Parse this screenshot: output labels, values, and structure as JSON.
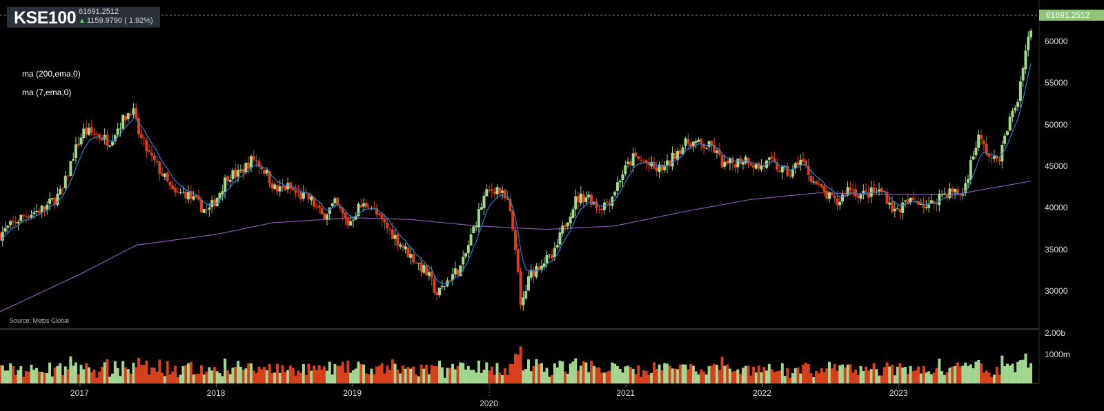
{
  "header": {
    "ticker": "KSE100",
    "last_value": "61691.2512",
    "change": "1159.9790 ( 1.92%)",
    "change_direction": "up"
  },
  "legend": {
    "ma_long": "ma (200,ema,0)",
    "ma_short": "ma (7,ema,0)"
  },
  "source": "Source: Mettis Global",
  "price_badge": "61691.2512",
  "colors": {
    "background": "#000000",
    "up": "#a3d68e",
    "down": "#d6401c",
    "ma_short": "#2e7fd0",
    "ma_long": "#8a56b0",
    "badge": "#8dc47a",
    "grid": "#2a2a2a"
  },
  "chart_data": {
    "type": "candlestick",
    "y_ticks": [
      "60000",
      "55000",
      "50000",
      "45000",
      "40000",
      "35000",
      "30000"
    ],
    "y_range": [
      26000,
      63500
    ],
    "volume_ticks": [
      "2.00b",
      "1000m"
    ],
    "x_ticks": [
      "2017",
      "2018",
      "2019",
      "2020",
      "2021",
      "2022",
      "2023"
    ],
    "x_range": [
      "2016-06-01",
      "2023-12-31"
    ],
    "last_close": 61691.2512,
    "close_path": [
      [
        "2016-06-01",
        36800
      ],
      [
        "2016-08-01",
        39000
      ],
      [
        "2016-10-01",
        40000
      ],
      [
        "2016-11-15",
        42000
      ],
      [
        "2016-12-15",
        46500
      ],
      [
        "2017-01-10",
        49200
      ],
      [
        "2017-02-15",
        48800
      ],
      [
        "2017-03-20",
        48000
      ],
      [
        "2017-04-20",
        50200
      ],
      [
        "2017-05-20",
        52000
      ],
      [
        "2017-06-10",
        48500
      ],
      [
        "2017-07-10",
        46000
      ],
      [
        "2017-08-10",
        44000
      ],
      [
        "2017-09-10",
        41500
      ],
      [
        "2017-10-10",
        41800
      ],
      [
        "2017-11-10",
        40500
      ],
      [
        "2017-12-10",
        39500
      ],
      [
        "2018-01-05",
        41500
      ],
      [
        "2018-02-01",
        44000
      ],
      [
        "2018-03-01",
        44000
      ],
      [
        "2018-04-10",
        46000
      ],
      [
        "2018-05-10",
        44500
      ],
      [
        "2018-06-10",
        42000
      ],
      [
        "2018-07-10",
        42500
      ],
      [
        "2018-08-10",
        41500
      ],
      [
        "2018-09-10",
        41000
      ],
      [
        "2018-10-10",
        39000
      ],
      [
        "2018-11-15",
        40500
      ],
      [
        "2018-12-20",
        38000
      ],
      [
        "2019-01-15",
        40000
      ],
      [
        "2019-02-15",
        40500
      ],
      [
        "2019-03-15",
        38500
      ],
      [
        "2019-04-15",
        37000
      ],
      [
        "2019-05-20",
        35000
      ],
      [
        "2019-06-20",
        33500
      ],
      [
        "2019-07-20",
        32000
      ],
      [
        "2019-08-15",
        29500
      ],
      [
        "2019-09-15",
        31500
      ],
      [
        "2019-10-20",
        33000
      ],
      [
        "2019-11-20",
        37500
      ],
      [
        "2019-12-20",
        41500
      ],
      [
        "2020-01-20",
        42500
      ],
      [
        "2020-02-20",
        40500
      ],
      [
        "2020-03-10",
        36000
      ],
      [
        "2020-03-25",
        28000
      ],
      [
        "2020-04-20",
        32000
      ],
      [
        "2020-05-20",
        33500
      ],
      [
        "2020-06-20",
        34000
      ],
      [
        "2020-07-20",
        38000
      ],
      [
        "2020-08-20",
        41000
      ],
      [
        "2020-09-20",
        41500
      ],
      [
        "2020-10-20",
        40000
      ],
      [
        "2020-11-20",
        41000
      ],
      [
        "2020-12-20",
        44000
      ],
      [
        "2021-01-20",
        46000
      ],
      [
        "2021-02-20",
        45500
      ],
      [
        "2021-03-20",
        44500
      ],
      [
        "2021-04-20",
        45000
      ],
      [
        "2021-05-20",
        47000
      ],
      [
        "2021-06-20",
        48000
      ],
      [
        "2021-07-20",
        47500
      ],
      [
        "2021-08-20",
        47300
      ],
      [
        "2021-09-20",
        45000
      ],
      [
        "2021-10-20",
        45500
      ],
      [
        "2021-11-20",
        46000
      ],
      [
        "2021-12-20",
        44800
      ],
      [
        "2022-01-20",
        45500
      ],
      [
        "2022-02-20",
        44500
      ],
      [
        "2022-03-20",
        44000
      ],
      [
        "2022-04-10",
        46000
      ],
      [
        "2022-05-20",
        43000
      ],
      [
        "2022-06-20",
        41500
      ],
      [
        "2022-07-20",
        40500
      ],
      [
        "2022-08-20",
        42500
      ],
      [
        "2022-09-20",
        41500
      ],
      [
        "2022-10-20",
        41800
      ],
      [
        "2022-11-20",
        42000
      ],
      [
        "2022-12-20",
        39500
      ],
      [
        "2023-01-20",
        40500
      ],
      [
        "2023-02-20",
        41000
      ],
      [
        "2023-03-20",
        40000
      ],
      [
        "2023-04-20",
        41500
      ],
      [
        "2023-05-20",
        42000
      ],
      [
        "2023-06-20",
        41500
      ],
      [
        "2023-07-10",
        45000
      ],
      [
        "2023-08-01",
        48500
      ],
      [
        "2023-08-20",
        47000
      ],
      [
        "2023-09-10",
        45500
      ],
      [
        "2023-10-01",
        46500
      ],
      [
        "2023-10-20",
        50000
      ],
      [
        "2023-11-15",
        53000
      ],
      [
        "2023-12-01",
        58000
      ],
      [
        "2023-12-20",
        61691
      ]
    ],
    "ma_long_path": [
      [
        "2016-06-01",
        27500
      ],
      [
        "2017-01-01",
        32000
      ],
      [
        "2017-06-01",
        35500
      ],
      [
        "2018-01-01",
        36800
      ],
      [
        "2018-06-01",
        38200
      ],
      [
        "2019-01-01",
        38800
      ],
      [
        "2019-06-01",
        38600
      ],
      [
        "2019-12-01",
        37800
      ],
      [
        "2020-06-01",
        37400
      ],
      [
        "2020-12-01",
        37800
      ],
      [
        "2021-06-01",
        39500
      ],
      [
        "2021-12-01",
        41000
      ],
      [
        "2022-06-01",
        41800
      ],
      [
        "2022-12-01",
        41600
      ],
      [
        "2023-06-01",
        41600
      ],
      [
        "2023-12-20",
        43200
      ]
    ]
  }
}
